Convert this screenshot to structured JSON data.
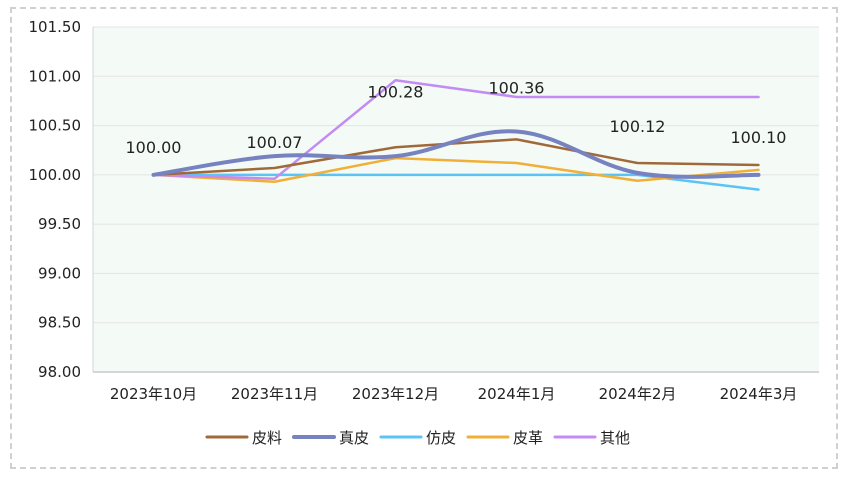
{
  "chart_data": {
    "type": "line",
    "categories": [
      "2023年10月",
      "2023年11月",
      "2023年12月",
      "2024年1月",
      "2024年2月",
      "2024年3月"
    ],
    "ylim": [
      98.0,
      101.5
    ],
    "yticks": [
      "98.00",
      "98.50",
      "99.00",
      "99.50",
      "100.00",
      "100.50",
      "101.00",
      "101.50"
    ],
    "series": [
      {
        "name": "皮料",
        "values": [
          100.0,
          100.07,
          100.28,
          100.36,
          100.12,
          100.1
        ],
        "color": "#a0693a",
        "smooth": false
      },
      {
        "name": "真皮",
        "values": [
          100.0,
          100.19,
          100.19,
          100.44,
          100.02,
          100.0
        ],
        "color": "#7782c0",
        "smooth": true
      },
      {
        "name": "仿皮",
        "values": [
          100.0,
          100.0,
          100.0,
          100.0,
          100.0,
          99.85
        ],
        "color": "#5bc4f5",
        "smooth": false
      },
      {
        "name": "皮革",
        "values": [
          100.0,
          99.93,
          100.17,
          100.12,
          99.94,
          100.05
        ],
        "color": "#f0b038",
        "smooth": false
      },
      {
        "name": "其他",
        "values": [
          100.0,
          99.96,
          100.96,
          100.79,
          100.79,
          100.79
        ],
        "color": "#c38cf5",
        "smooth": false
      }
    ],
    "data_labels": [
      "100.00",
      "100.07",
      "100.28",
      "100.36",
      "100.12",
      "100.10"
    ],
    "grid": true,
    "legend_position": "bottom"
  }
}
